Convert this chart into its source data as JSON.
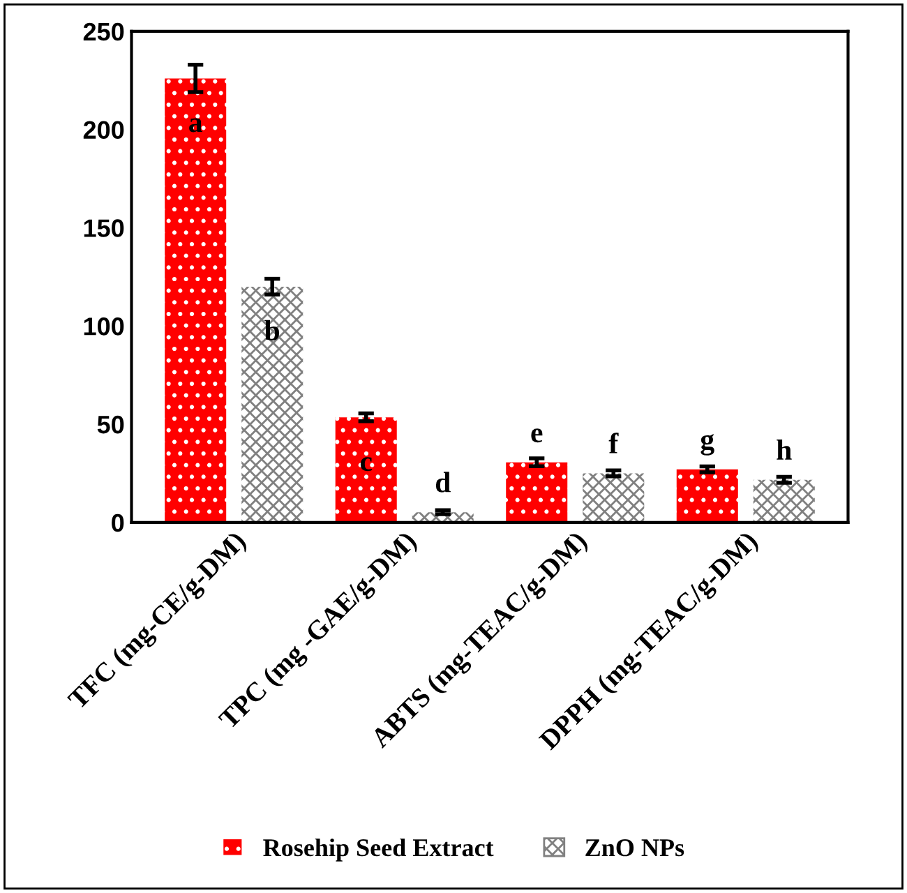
{
  "chart_data": {
    "type": "bar",
    "categories": [
      "TFC (mg-CE/g-DM)",
      "TPC (mg -GAE/g-DM)",
      "ABTS (mg-TEAC/g-DM)",
      "DPPH (mg-TEAC/g-DM)"
    ],
    "series": [
      {
        "name": "Rosehip Seed Extract",
        "color": "#ff0000",
        "values": [
          226,
          53.5,
          30.6,
          27
        ],
        "errors": [
          7,
          2,
          2,
          1.5
        ]
      },
      {
        "name": "ZnO NPs",
        "color": "#808080",
        "values": [
          120,
          5.2,
          25,
          21.7
        ],
        "errors": [
          4,
          1,
          1.5,
          1.5
        ]
      }
    ],
    "ylim": [
      0,
      250
    ],
    "yticks": [
      0,
      50,
      100,
      150,
      200,
      250
    ],
    "grid": false,
    "legend": "bottom",
    "annotations": [
      "a",
      "b",
      "c",
      "d",
      "e",
      "f",
      "g",
      "h"
    ]
  }
}
